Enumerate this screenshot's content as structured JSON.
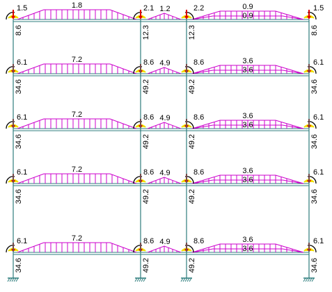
{
  "colors": {
    "beam": "#2e7d7d",
    "load": "#cc00cc",
    "moment_arrow": "#000000",
    "support_red": "#e00000",
    "support_yellow": "#f0e000",
    "text": "#000000"
  },
  "floors": [
    {
      "left_end_moment": "1.5",
      "bay1_load": "1.8",
      "mid_left_moment": "2.1",
      "bay2_load": "1.2",
      "mid_right_moment": "2.2",
      "bay3_load_top": "0.9",
      "bay3_load_bottom": "0.9",
      "right_end_moment": "1.5",
      "col_left": "8.6",
      "col_mid_left": "12.3",
      "col_mid_right": "12.3",
      "col_right": "8.6"
    },
    {
      "left_end_moment": "6.1",
      "bay1_load": "7.2",
      "mid_left_moment": "8.6",
      "bay2_load": "4.9",
      "mid_right_moment": "8.6",
      "bay3_load_top": "3.6",
      "bay3_load_bottom": "3.6",
      "right_end_moment": "6.1",
      "col_left": "34.6",
      "col_mid_left": "49.2",
      "col_mid_right": "49.2",
      "col_right": "34.6"
    },
    {
      "left_end_moment": "6.1",
      "bay1_load": "7.2",
      "mid_left_moment": "8.6",
      "bay2_load": "4.9",
      "mid_right_moment": "8.6",
      "bay3_load_top": "3.6",
      "bay3_load_bottom": "3.6",
      "right_end_moment": "6.1",
      "col_left": "34.6",
      "col_mid_left": "49.2",
      "col_mid_right": "49.2",
      "col_right": "34.6"
    },
    {
      "left_end_moment": "6.1",
      "bay1_load": "7.2",
      "mid_left_moment": "8.6",
      "bay2_load": "4.9",
      "mid_right_moment": "8.6",
      "bay3_load_top": "3.6",
      "bay3_load_bottom": "3.6",
      "right_end_moment": "6.1",
      "col_left": "34.6",
      "col_mid_left": "49.2",
      "col_mid_right": "49.2",
      "col_right": "34.6"
    },
    {
      "left_end_moment": "6.1",
      "bay1_load": "7.2",
      "mid_left_moment": "8.6",
      "bay2_load": "4.9",
      "mid_right_moment": "8.6",
      "bay3_load_top": "3.6",
      "bay3_load_bottom": "3.6",
      "right_end_moment": "6.1",
      "col_left": "34.6",
      "col_mid_left": "49.2",
      "col_mid_right": "49.2",
      "col_right": "34.6"
    }
  ],
  "icons": {
    "support": "fixed-support-icon",
    "moment": "moment-arc-icon",
    "load_arrow": "down-arrow-icon"
  }
}
